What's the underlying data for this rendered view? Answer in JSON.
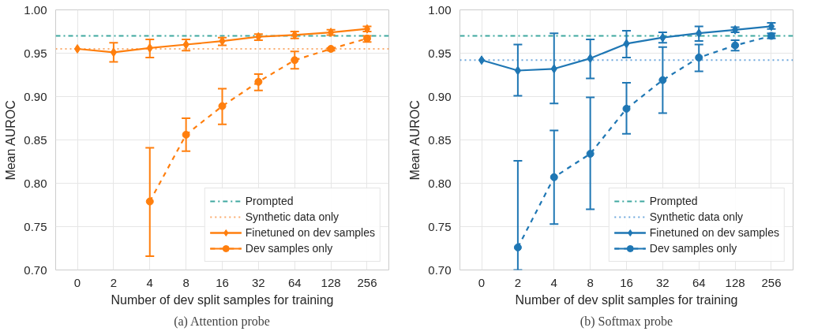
{
  "chart_data": [
    {
      "type": "line",
      "title": "(a) Attention probe",
      "xlabel": "Number of dev split samples for training",
      "ylabel": "Mean AUROC",
      "categories": [
        "0",
        "2",
        "4",
        "8",
        "16",
        "32",
        "64",
        "128",
        "256"
      ],
      "ylim": [
        0.7,
        1.0
      ],
      "yticks": [
        {
          "value": 0.7,
          "label": "0.70"
        },
        {
          "value": 0.75,
          "label": "0.75"
        },
        {
          "value": 0.8,
          "label": "0.80"
        },
        {
          "value": 0.85,
          "label": "0.85"
        },
        {
          "value": 0.9,
          "label": "0.90"
        },
        {
          "value": 0.95,
          "label": "0.95"
        },
        {
          "value": 1.0,
          "label": "1.00"
        }
      ],
      "grid": true,
      "legend": "bottom right",
      "ref_lines": [
        {
          "axis": "y",
          "value": 0.97,
          "label": "Prompted",
          "color": "#3fa8a0",
          "line_style": "dashdot"
        },
        {
          "axis": "y",
          "value": 0.955,
          "label": "Synthetic data only",
          "color": "#fbac6e",
          "line_style": "dotted"
        }
      ],
      "series": [
        {
          "name": "Finetuned on dev samples",
          "color": "#ff7f0e",
          "marker": "diamond",
          "line_style": "solid",
          "values": [
            0.955,
            0.951,
            0.956,
            0.96,
            0.964,
            0.969,
            0.971,
            0.974,
            0.978
          ],
          "errors": [
            null,
            [
              0.94,
              0.962
            ],
            [
              0.945,
              0.966
            ],
            [
              0.953,
              0.966
            ],
            [
              0.959,
              0.968
            ],
            [
              0.965,
              0.972
            ],
            [
              0.967,
              0.975
            ],
            [
              0.971,
              0.977
            ],
            [
              0.975,
              0.981
            ]
          ]
        },
        {
          "name": "Dev samples only",
          "color": "#ff7f0e",
          "marker": "circle",
          "line_style": "dashed",
          "values": [
            null,
            null,
            0.779,
            0.856,
            0.889,
            0.917,
            0.942,
            0.955,
            0.967
          ],
          "errors": [
            null,
            null,
            [
              0.716,
              0.841
            ],
            [
              0.837,
              0.875
            ],
            [
              0.868,
              0.909
            ],
            [
              0.907,
              0.926
            ],
            [
              0.932,
              0.952
            ],
            [
              0.953,
              0.956
            ],
            [
              0.963,
              0.97
            ]
          ]
        }
      ]
    },
    {
      "type": "line",
      "title": "(b) Softmax probe",
      "xlabel": "Number of dev split samples for training",
      "ylabel": "Mean AUROC",
      "categories": [
        "0",
        "2",
        "4",
        "8",
        "16",
        "32",
        "64",
        "128",
        "256"
      ],
      "ylim": [
        0.7,
        1.0
      ],
      "yticks": [
        {
          "value": 0.7,
          "label": "0.70"
        },
        {
          "value": 0.75,
          "label": "0.75"
        },
        {
          "value": 0.8,
          "label": "0.80"
        },
        {
          "value": 0.85,
          "label": "0.85"
        },
        {
          "value": 0.9,
          "label": "0.90"
        },
        {
          "value": 0.95,
          "label": "0.95"
        },
        {
          "value": 1.0,
          "label": "1.00"
        }
      ],
      "grid": true,
      "legend": "bottom right",
      "ref_lines": [
        {
          "axis": "y",
          "value": 0.97,
          "label": "Prompted",
          "color": "#3fa8a0",
          "line_style": "dashdot"
        },
        {
          "axis": "y",
          "value": 0.942,
          "label": "Synthetic data only",
          "color": "#6fa8dc",
          "line_style": "dotted"
        }
      ],
      "series": [
        {
          "name": "Finetuned on dev samples",
          "color": "#1f77b4",
          "marker": "diamond",
          "line_style": "solid",
          "values": [
            0.942,
            0.93,
            0.932,
            0.944,
            0.961,
            0.968,
            0.973,
            0.977,
            0.981
          ],
          "errors": [
            null,
            [
              0.901,
              0.96
            ],
            [
              0.892,
              0.973
            ],
            [
              0.921,
              0.966
            ],
            [
              0.945,
              0.976
            ],
            [
              0.962,
              0.974
            ],
            [
              0.964,
              0.981
            ],
            [
              0.974,
              0.98
            ],
            [
              0.978,
              0.985
            ]
          ]
        },
        {
          "name": "Dev samples only",
          "color": "#1f77b4",
          "marker": "circle",
          "line_style": "dashed",
          "values": [
            null,
            0.726,
            0.807,
            0.834,
            0.886,
            0.919,
            0.945,
            0.959,
            0.97
          ],
          "errors": [
            null,
            [
              0.7,
              0.826
            ],
            [
              0.753,
              0.861
            ],
            [
              0.77,
              0.899
            ],
            [
              0.857,
              0.916
            ],
            [
              0.881,
              0.957
            ],
            [
              0.929,
              0.96
            ],
            [
              0.953,
              0.965
            ],
            [
              0.967,
              0.973
            ]
          ]
        }
      ]
    }
  ]
}
